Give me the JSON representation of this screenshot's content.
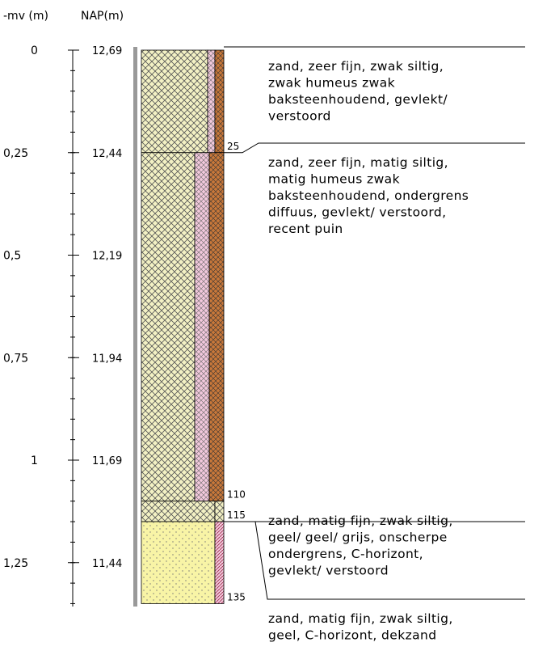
{
  "header": {
    "depth_label": "-mv (m)",
    "nap_label": "NAP(m)"
  },
  "axis": {
    "ticks": [
      {
        "value": 0,
        "label": "0",
        "nap": "12,69"
      },
      {
        "value": 0.25,
        "label": "0,25",
        "nap": "12,44"
      },
      {
        "value": 0.5,
        "label": "0,5",
        "nap": "12,19"
      },
      {
        "value": 0.75,
        "label": "0,75",
        "nap": "11,94"
      },
      {
        "value": 1,
        "label": "1",
        "nap": "11,69"
      },
      {
        "value": 1.25,
        "label": "1,25",
        "nap": "11,44"
      }
    ]
  },
  "layers": [
    {
      "bottom": 25,
      "description": [
        "zand, zeer fijn, zwak siltig,",
        "zwak humeus zwak",
        "baksteenhoudend, gevlekt/",
        "verstoord"
      ]
    },
    {
      "bottom": 110,
      "description": [
        "zand, zeer fijn, matig siltig,",
        "matig humeus zwak",
        "baksteenhoudend, ondergrens",
        "diffuus, gevlekt/ verstoord,",
        "recent puin"
      ]
    },
    {
      "bottom": 115,
      "description": [
        "zand, matig fijn, zwak siltig,",
        "geel/ geel/ grijs, onscherpe",
        "ondergrens, C-horizont,",
        "gevlekt/ verstoord"
      ]
    },
    {
      "bottom": 135,
      "description": [
        "zand, matig fijn, zwak siltig,",
        "geel, C-horizont, dekzand"
      ]
    }
  ]
}
